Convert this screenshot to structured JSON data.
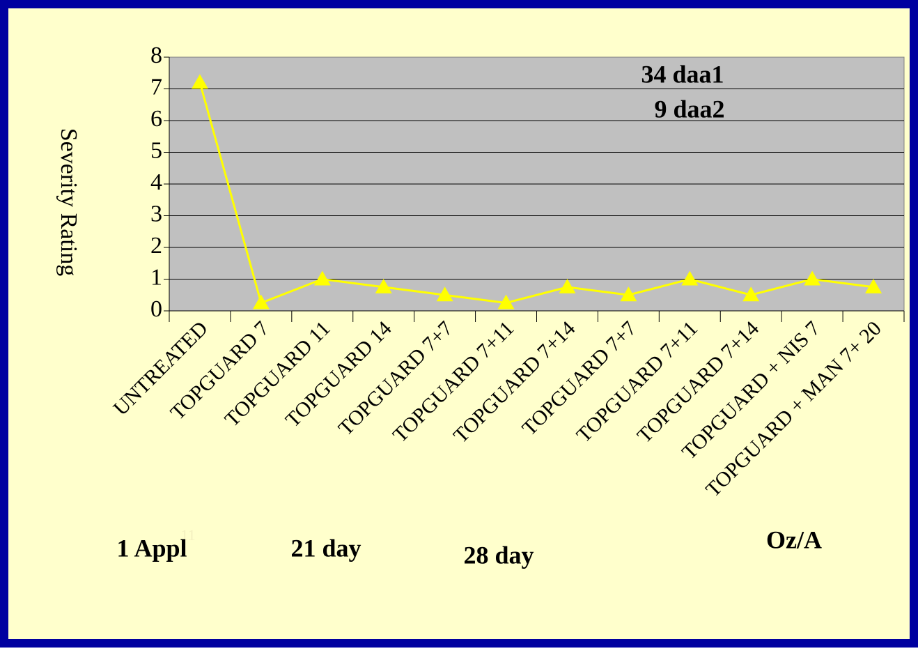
{
  "chart_data": {
    "type": "line",
    "y_label": "Severity Rating",
    "categories": [
      "UNTREATED",
      "TOPGUARD 7",
      "TOPGUARD 11",
      "TOPGUARD 14",
      "TOPGUARD 7+7",
      "TOPGUARD 7+11",
      "TOPGUARD 7+14",
      "TOPGUARD 7+7",
      "TOPGUARD 7+11",
      "TOPGUARD 7+14",
      "TOPGUARD + NIS 7",
      "TOPGUARD + MAN 7+ 20"
    ],
    "series": [
      {
        "name": "Severity",
        "color": "#ffff00",
        "values": [
          7.2,
          0.25,
          1,
          0.75,
          0.5,
          0.25,
          0.75,
          0.5,
          1,
          0.5,
          1,
          0.75
        ]
      }
    ],
    "ylim": [
      0,
      8
    ],
    "yticks": [
      0,
      1,
      2,
      3,
      4,
      5,
      6,
      7,
      8
    ],
    "grid": true,
    "annotations": [
      "34 daa1",
      "9 daa2",
      "1 Appl",
      "21 day",
      "28 day",
      "Oz/A"
    ],
    "slide_number": "11"
  }
}
